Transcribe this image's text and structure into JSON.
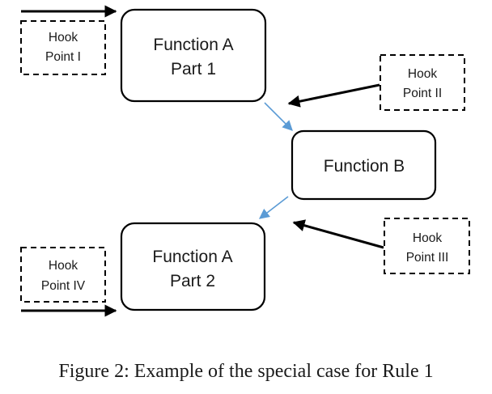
{
  "nodes": {
    "function_a_part1": {
      "lines": [
        "Function A",
        "Part 1"
      ]
    },
    "function_b": {
      "lines": [
        "Function B"
      ]
    },
    "function_a_part2": {
      "lines": [
        "Function A",
        "Part 2"
      ]
    },
    "hook_point_1": {
      "lines": [
        "Hook",
        "Point I"
      ]
    },
    "hook_point_2": {
      "lines": [
        "Hook",
        "Point II"
      ]
    },
    "hook_point_3": {
      "lines": [
        "Hook",
        "Point III"
      ]
    },
    "hook_point_4": {
      "lines": [
        "Hook",
        "Point IV"
      ]
    }
  },
  "colors": {
    "flow_arrow": "#5b9bd5",
    "hook_arrow": "#000000",
    "box_stroke": "#000000"
  },
  "caption": "Figure 2: Example of the special case for Rule 1"
}
